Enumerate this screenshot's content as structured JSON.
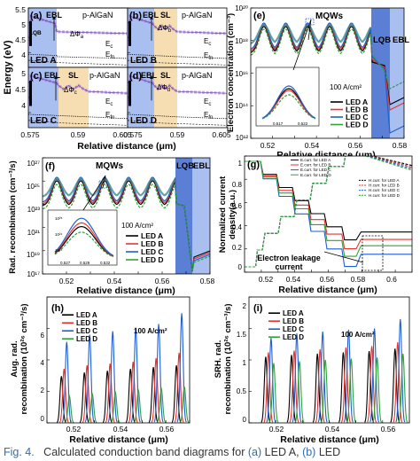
{
  "figure": {
    "caption": {
      "label": "Fig. 4.",
      "text": "Calculated conduction band diagrams for",
      "ref_a": "(a)",
      "led_a": "LED A,",
      "ref_b": "(b)",
      "led_b": "LED"
    },
    "legend_leds": [
      "LED A",
      "LED B",
      "LED C",
      "LED D"
    ],
    "current_density_label": "100 A/cm²",
    "panel_letters": [
      "(a)",
      "(b)",
      "(c)",
      "(d)",
      "(e)",
      "(f)",
      "(g)",
      "(h)",
      "(i)"
    ],
    "region_labels": {
      "ebl": "EBL",
      "sl": "SL",
      "palgan": "p-AlGaN",
      "lqb": "LQB",
      "mqws": "MQWs",
      "ec": "E",
      "ec_sub": "c",
      "efn": "E",
      "efn_sub": "fn",
      "phi": "ΔΦ",
      "phi_a": "a",
      "phi_b": "b",
      "phi_c": "c",
      "phi_d": "d"
    },
    "colors": {
      "led_a": "#000000",
      "led_b": "#e8342e",
      "led_c": "#1f5fd0",
      "led_d": "#2fa33a",
      "teal_curve": "#3c8c8c",
      "lqb_band": "#5b7fd4",
      "ebl_band": "#a9bff0",
      "sl_band": "#f6deb2",
      "ec_band": "#9a62d8",
      "caption": "#2a6ebb"
    }
  },
  "chart_data": [
    {
      "panel": "(a)",
      "type": "line",
      "title": "",
      "xlabel": "",
      "ylabel": "Energy (eV)",
      "ylim": [
        3.5,
        5.5
      ],
      "yticks": [
        4.0,
        4.5,
        5.0,
        5.5
      ],
      "xlim": [
        0.575,
        0.605
      ],
      "labels": [
        "EBL",
        "p-AlGaN",
        "LQB",
        "LED A",
        "ΔΦa",
        "Ec",
        "Efn"
      ]
    },
    {
      "panel": "(b)",
      "type": "line",
      "xlim": [
        0.575,
        0.605
      ],
      "labels": [
        "EBL",
        "SL",
        "p-AlGaN",
        "LED B",
        "ΔΦb",
        "Ec",
        "Efn"
      ]
    },
    {
      "panel": "(c)",
      "type": "line",
      "xlim": [
        0.575,
        0.605
      ],
      "ylim": [
        3.5,
        5.5
      ],
      "yticks": [
        4.0,
        4.5,
        5.0
      ],
      "xticks": [
        0.575,
        0.59,
        0.605
      ],
      "xlabel": "Relative distance (μm)",
      "labels": [
        "EBL",
        "SL",
        "p-AlGaN",
        "LED C",
        "ΔΦc",
        "Ec",
        "Efn"
      ]
    },
    {
      "panel": "(d)",
      "type": "line",
      "xlim": [
        0.575,
        0.605
      ],
      "xticks": [
        0.575,
        0.59,
        0.605
      ],
      "xlabel": "Relative distance (μm)",
      "labels": [
        "EBL",
        "SL",
        "p-AlGaN",
        "LED D",
        "ΔΦd",
        "Ec",
        "Efn"
      ]
    },
    {
      "panel": "(e)",
      "type": "line",
      "ylabel": "Electron concentration (cm⁻³)",
      "xlabel": "Relative distance (μm)",
      "xlim": [
        0.512,
        0.582
      ],
      "xticks": [
        0.52,
        0.54,
        0.56,
        0.58
      ],
      "yscale": "log",
      "ylim": [
        1000000000000.0,
        1e+20
      ],
      "ytick_labels": [
        "10¹²",
        "10¹⁴",
        "10¹⁶",
        "10¹⁸",
        "10²⁰"
      ],
      "series": [
        {
          "name": "LED A"
        },
        {
          "name": "LED B"
        },
        {
          "name": "LED C"
        },
        {
          "name": "LED D"
        }
      ],
      "peaks_x": [
        0.518,
        0.528,
        0.538,
        0.548,
        0.558,
        0.568
      ],
      "inset_xticks": [
        "0.517",
        "0.522"
      ]
    },
    {
      "panel": "(f)",
      "type": "line",
      "ylabel": "Rad. recombination (cm⁻³/s)",
      "xlabel": "Relative distance (μm)",
      "xlim": [
        0.51,
        0.58
      ],
      "xticks": [
        0.52,
        0.54,
        0.56,
        0.58
      ],
      "yscale": "log",
      "ylim": [
        1e+17,
        1e+27
      ],
      "ytick_labels": [
        "10¹⁷",
        "10¹⁹",
        "10²¹",
        "10²³",
        "10²⁵",
        "10²⁷"
      ],
      "series": [
        {
          "name": "LED A"
        },
        {
          "name": "LED B"
        },
        {
          "name": "LED C"
        },
        {
          "name": "LED D"
        }
      ],
      "inset_ytick_labels": [
        "10²⁵",
        "10²⁴",
        "10²³"
      ],
      "inset_xticks": [
        "0.527",
        "0.529",
        "0.532"
      ]
    },
    {
      "panel": "(g)",
      "type": "line",
      "ylabel": "Normalized current density(a.u.)",
      "xlabel": "Relative distance (μm)",
      "xlim": [
        0.505,
        0.61
      ],
      "xticks": [
        0.52,
        0.54,
        0.56,
        0.58,
        0.6
      ],
      "ylim": [
        -0.05,
        1.05
      ],
      "yticks": [
        0.0,
        0.2,
        0.4,
        0.6,
        0.8,
        1.0
      ],
      "series": [
        {
          "name": "E.curr. for LED A"
        },
        {
          "name": "E.curr. for LED B"
        },
        {
          "name": "E.curr. for LED C"
        },
        {
          "name": "E.curr. for LED D"
        },
        {
          "name": "H.curr. for LED A"
        },
        {
          "name": "H.curr. for LED B"
        },
        {
          "name": "H.curr. for LED C"
        },
        {
          "name": "H.curr. for LED D"
        }
      ],
      "leakage": [
        {
          "name": "LED A",
          "value": 0.33
        },
        {
          "name": "LED B",
          "value": 0.26
        },
        {
          "name": "LED C",
          "value": 0.12
        },
        {
          "name": "LED D",
          "value": 0.2
        }
      ],
      "annotation": "Electron leakage current"
    },
    {
      "panel": "(h)",
      "type": "line",
      "ylabel": "Aug. rad. recombination (10²⁶ cm⁻³/s)",
      "xlabel": "Relative distance (μm)",
      "xlim": [
        0.51,
        0.572
      ],
      "xticks": [
        0.52,
        0.54,
        0.56
      ],
      "ylim": [
        0,
        7
      ],
      "yticks": [
        0,
        2,
        4,
        6
      ],
      "peaks_x": [
        0.518,
        0.528,
        0.538,
        0.548,
        0.558,
        0.568
      ],
      "series": [
        {
          "name": "LED A",
          "values": [
            2.6,
            2.8,
            2.9,
            3.0,
            3.1,
            3.2
          ]
        },
        {
          "name": "LED B",
          "values": [
            3.0,
            3.2,
            3.3,
            3.4,
            3.6,
            3.9
          ]
        },
        {
          "name": "LED C",
          "values": [
            4.5,
            4.9,
            5.1,
            5.3,
            5.5,
            6.1
          ]
        },
        {
          "name": "LED D",
          "values": [
            1.5,
            1.6,
            1.7,
            1.8,
            1.9,
            2.0
          ]
        }
      ]
    },
    {
      "panel": "(i)",
      "type": "line",
      "ylabel": "SRH. rad. recombination (10²⁶ cm⁻³/s)",
      "xlabel": "Relative distance (μm)",
      "xlim": [
        0.51,
        0.572
      ],
      "xticks": [
        0.52,
        0.54,
        0.56
      ],
      "ylim": [
        0,
        2.0
      ],
      "yticks": [
        0.0,
        0.5,
        1.0,
        1.5,
        2.0
      ],
      "peaks_x": [
        0.518,
        0.528,
        0.538,
        0.548,
        0.558,
        0.568
      ],
      "series": [
        {
          "name": "LED A",
          "values": [
            1.05,
            1.08,
            1.1,
            1.12,
            1.14,
            1.18
          ]
        },
        {
          "name": "LED B",
          "values": [
            1.12,
            1.15,
            1.17,
            1.2,
            1.22,
            1.28
          ]
        },
        {
          "name": "LED C",
          "values": [
            1.35,
            1.42,
            1.45,
            1.48,
            1.5,
            1.65
          ]
        },
        {
          "name": "LED D",
          "values": [
            0.95,
            0.98,
            1.0,
            1.02,
            1.04,
            1.1
          ]
        }
      ]
    }
  ]
}
